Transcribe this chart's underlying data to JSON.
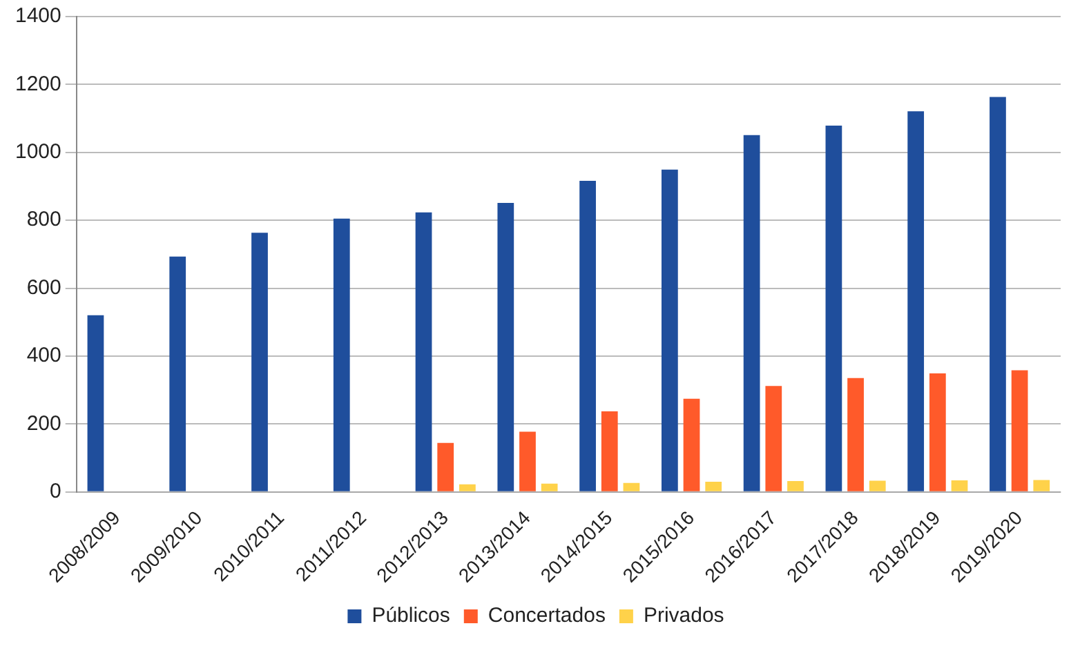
{
  "chart_data": {
    "type": "bar",
    "categories": [
      "2008/2009",
      "2009/2010",
      "2010/2011",
      "2011/2012",
      "2012/2013",
      "2013/2014",
      "2014/2015",
      "2015/2016",
      "2016/2017",
      "2017/2018",
      "2018/2019",
      "2019/2020"
    ],
    "series": [
      {
        "name": "Públicos",
        "color": "#1f4e9c",
        "values": [
          520,
          693,
          763,
          805,
          823,
          851,
          916,
          949,
          1051,
          1079,
          1121,
          1163
        ]
      },
      {
        "name": "Concertados",
        "color": "#ff5a2a",
        "values": [
          null,
          null,
          null,
          null,
          144,
          177,
          237,
          274,
          312,
          335,
          349,
          358
        ]
      },
      {
        "name": "Privados",
        "color": "#ffd24a",
        "values": [
          null,
          null,
          null,
          null,
          22,
          24,
          26,
          30,
          32,
          33,
          34,
          35
        ]
      }
    ],
    "ylim": [
      0,
      1400
    ],
    "yticks": [
      0,
      200,
      400,
      600,
      800,
      1000,
      1200,
      1400
    ],
    "grid": "y",
    "legend": "bottom"
  }
}
